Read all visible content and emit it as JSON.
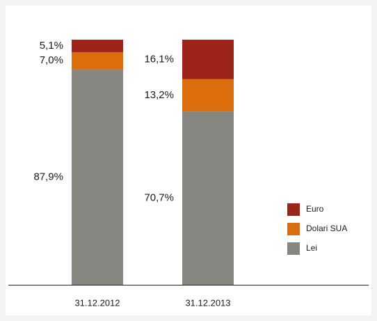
{
  "chart_data": {
    "type": "stacked_bar",
    "categories": [
      "31.12.2012",
      "31.12.2013"
    ],
    "series": [
      {
        "name": "Lei",
        "color": "#878580",
        "values": [
          87.9,
          70.7
        ],
        "value_labels": [
          "87,9%",
          "70,7%"
        ]
      },
      {
        "name": "Dolari SUA",
        "color": "#dc6d0d",
        "values": [
          7.0,
          13.2
        ],
        "value_labels": [
          "7,0%",
          "13,2%"
        ]
      },
      {
        "name": "Euro",
        "color": "#9c2419",
        "values": [
          5.1,
          16.1
        ],
        "value_labels": [
          "5,1%",
          "16,1%"
        ]
      }
    ],
    "ylim": [
      0,
      100
    ]
  }
}
